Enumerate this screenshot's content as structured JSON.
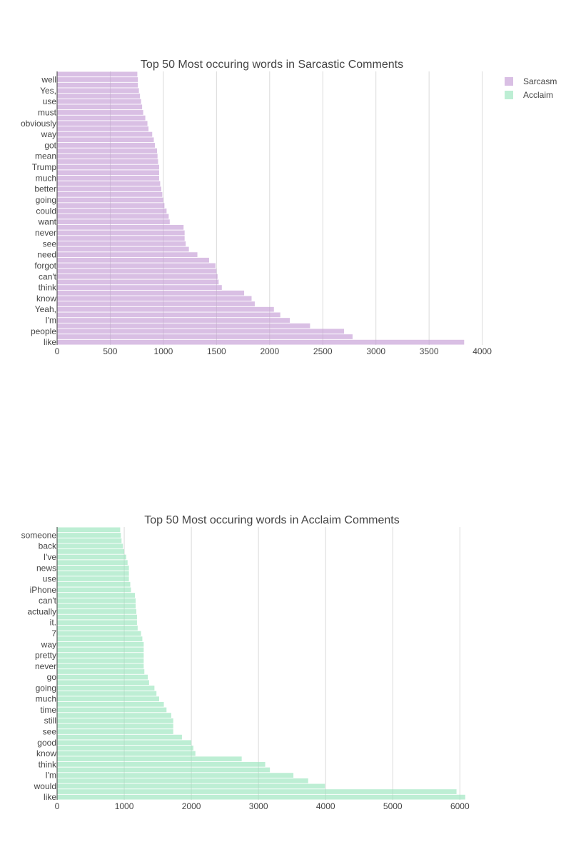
{
  "legend": [
    {
      "name": "Sarcasm",
      "color": "#d9bfe4"
    },
    {
      "name": "Acclaim",
      "color": "#bdeed4"
    }
  ],
  "chart_data": [
    {
      "type": "bar",
      "orientation": "horizontal",
      "title": "Top 50 Most occuring words in Sarcastic Comments",
      "series_name": "Sarcasm",
      "color": "#d9bfe4",
      "xlim": [
        0,
        4000
      ],
      "x_ticks": [
        "0",
        "500",
        "1000",
        "1500",
        "2000",
        "2500",
        "3000",
        "3500",
        "4000"
      ],
      "categories": [
        "like",
        "",
        "people",
        "",
        "I'm",
        "",
        "Yeah,",
        "",
        "know",
        "",
        "think",
        "",
        "can't",
        "",
        "forgot",
        "",
        "need",
        "",
        "see",
        "",
        "never",
        "",
        "want",
        "",
        "could",
        "",
        "going",
        "",
        "better",
        "",
        "much",
        "",
        "Trump",
        "",
        "mean",
        "",
        "got",
        "",
        "way",
        "",
        "obviously",
        "",
        "must",
        "",
        "use",
        "",
        "Yes,",
        "",
        "well",
        ""
      ],
      "values": [
        3830,
        2780,
        2700,
        2380,
        2190,
        2100,
        2040,
        1860,
        1830,
        1760,
        1550,
        1520,
        1510,
        1500,
        1490,
        1430,
        1320,
        1240,
        1210,
        1200,
        1200,
        1190,
        1060,
        1050,
        1030,
        1010,
        1000,
        990,
        980,
        970,
        960,
        960,
        960,
        950,
        945,
        940,
        920,
        910,
        895,
        860,
        850,
        830,
        810,
        800,
        790,
        780,
        770,
        760,
        760,
        755
      ]
    },
    {
      "type": "bar",
      "orientation": "horizontal",
      "title": "Top 50 Most occuring words in Acclaim Comments",
      "series_name": "Acclaim",
      "color": "#bdeed4",
      "xlim": [
        0,
        6000
      ],
      "x_ticks": [
        "0",
        "1000",
        "2000",
        "3000",
        "4000",
        "5000",
        "6000"
      ],
      "categories": [
        "like",
        "",
        "would",
        "",
        "I'm",
        "",
        "think",
        "",
        "know",
        "",
        "good",
        "",
        "see",
        "",
        "still",
        "",
        "time",
        "",
        "much",
        "",
        "going",
        "",
        "go",
        "",
        "never",
        "",
        "pretty",
        "",
        "way",
        "",
        "7",
        "",
        "it.",
        "",
        "actually",
        "",
        "can't",
        "",
        "iPhone",
        "",
        "use",
        "",
        "news",
        "",
        "I've",
        "",
        "back",
        "",
        "someone",
        ""
      ],
      "values": [
        6080,
        5950,
        3990,
        3740,
        3520,
        3170,
        3100,
        2750,
        2060,
        2030,
        2000,
        1860,
        1730,
        1730,
        1730,
        1700,
        1630,
        1590,
        1520,
        1480,
        1450,
        1370,
        1350,
        1300,
        1290,
        1290,
        1290,
        1290,
        1290,
        1270,
        1250,
        1200,
        1190,
        1190,
        1180,
        1170,
        1170,
        1160,
        1100,
        1090,
        1070,
        1070,
        1070,
        1050,
        1030,
        1000,
        980,
        960,
        950,
        940
      ]
    }
  ]
}
